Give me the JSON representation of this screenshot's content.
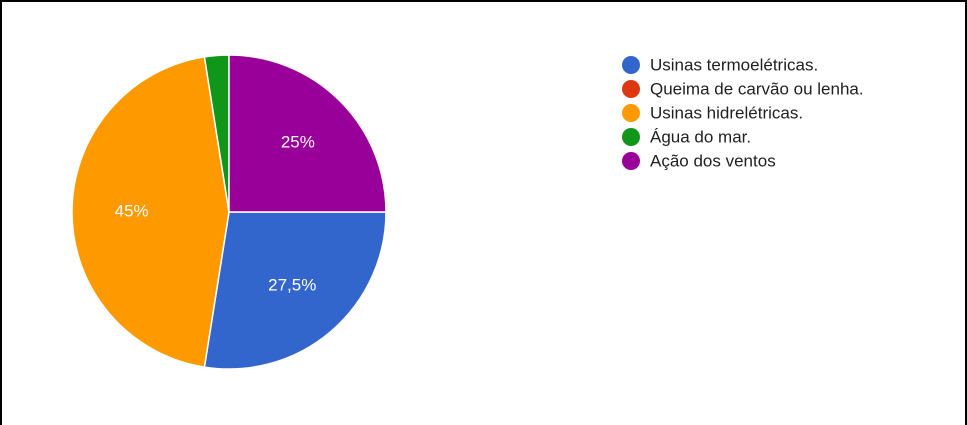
{
  "chart_data": {
    "type": "pie",
    "categories": [
      "Usinas termoelétricas.",
      "Queima de carvão ou lenha.",
      "Usinas hidrelétricas.",
      "Água do mar.",
      "Ação dos ventos"
    ],
    "values": [
      27.5,
      0,
      45,
      2.5,
      25
    ],
    "value_labels": [
      "27,5%",
      null,
      "45%",
      null,
      "25%"
    ],
    "colors": [
      "#3366cc",
      "#dc3912",
      "#ff9900",
      "#109618",
      "#990099"
    ],
    "legend": "right"
  }
}
